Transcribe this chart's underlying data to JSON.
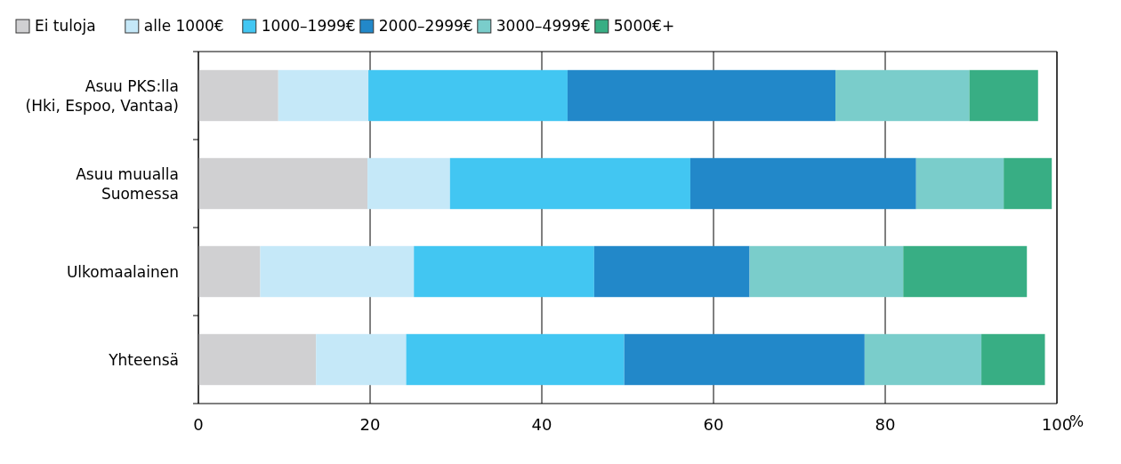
{
  "chart_data": {
    "type": "bar",
    "orientation": "horizontal",
    "stacked": true,
    "xlabel": "%",
    "categories": [
      "Asuu PKS:lla\n(Hki, Espoo, Vantaa)",
      "Asuu muualla\nSuomessa",
      "Ulkomaalainen",
      "Yhteensä"
    ],
    "series": [
      {
        "name": "Ei tuloja",
        "color": "#d0d0d2",
        "values": [
          9.3,
          19.7,
          7.2,
          13.7
        ]
      },
      {
        "name": "alle 1000€",
        "color": "#c5e8f8",
        "values": [
          10.5,
          9.6,
          17.9,
          10.5
        ]
      },
      {
        "name": "1000–1999€",
        "color": "#42c6f2",
        "values": [
          23.2,
          28.0,
          21.0,
          25.4
        ]
      },
      {
        "name": "2000–2999€",
        "color": "#2288c9",
        "values": [
          31.2,
          26.3,
          18.1,
          28.0
        ]
      },
      {
        "name": "3000–4999€",
        "color": "#7acdcb",
        "values": [
          15.6,
          10.2,
          17.9,
          13.6
        ]
      },
      {
        "name": "5000€+",
        "color": "#38ae84",
        "values": [
          8.0,
          5.6,
          14.4,
          7.4
        ]
      }
    ],
    "xlim": [
      0,
      100
    ],
    "xticks": [
      0,
      20,
      40,
      60,
      80,
      100
    ],
    "grid": "x",
    "legend": "top"
  }
}
